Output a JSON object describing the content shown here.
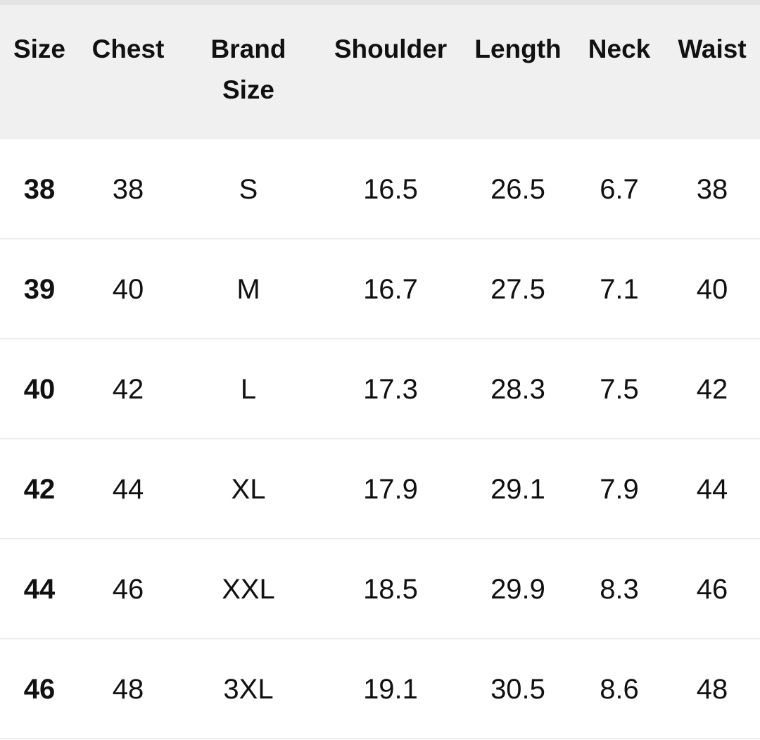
{
  "table": {
    "header": [
      "Size",
      "Chest",
      "Brand Size",
      "Shoulder",
      "Length",
      "Neck",
      "Waist"
    ],
    "rows": [
      [
        "38",
        "38",
        "S",
        "16.5",
        "26.5",
        "6.7",
        "38"
      ],
      [
        "39",
        "40",
        "M",
        "16.7",
        "27.5",
        "7.1",
        "40"
      ],
      [
        "40",
        "42",
        "L",
        "17.3",
        "28.3",
        "7.5",
        "42"
      ],
      [
        "42",
        "44",
        "XL",
        "17.9",
        "29.1",
        "7.9",
        "44"
      ],
      [
        "44",
        "46",
        "XXL",
        "18.5",
        "29.9",
        "8.3",
        "46"
      ],
      [
        "46",
        "48",
        "3XL",
        "19.1",
        "30.5",
        "8.6",
        "48"
      ]
    ]
  }
}
